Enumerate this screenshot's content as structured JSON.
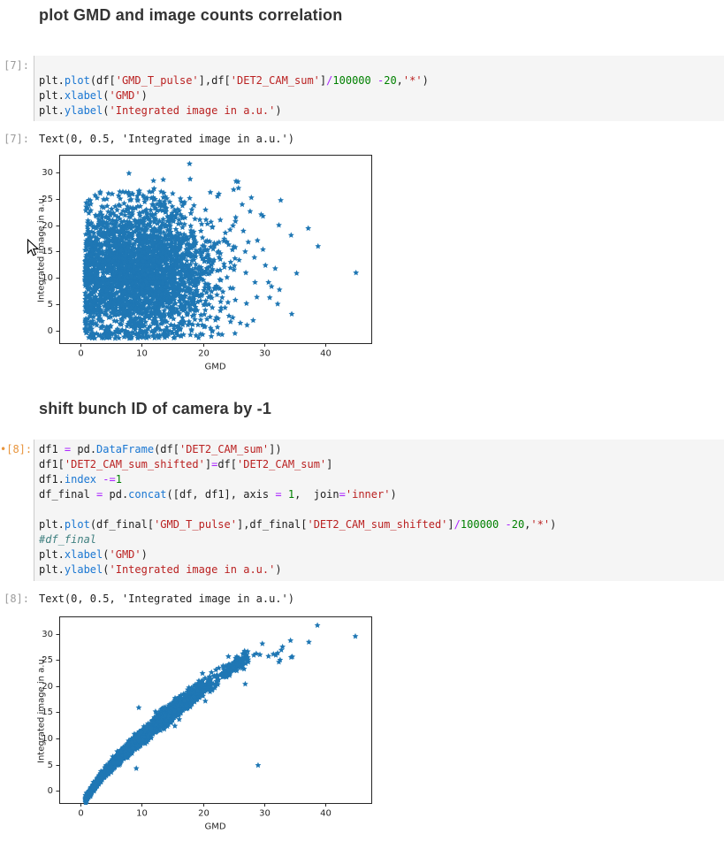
{
  "notebook": {
    "cells": [
      {
        "kind": "markdown",
        "text": "plot GMD and image counts correlation"
      },
      {
        "kind": "code",
        "prompt": "[7]:",
        "lines": [
          [],
          [
            [
              "d",
              "plt."
            ],
            [
              "p",
              "plot"
            ],
            [
              "d",
              "(df["
            ],
            [
              "s",
              "'GMD_T_pulse'"
            ],
            [
              "d",
              "],df["
            ],
            [
              "s",
              "'DET2_CAM_sum'"
            ],
            [
              "d",
              "]"
            ],
            [
              "o",
              "/"
            ],
            [
              "n",
              "100000"
            ],
            [
              "d",
              " "
            ],
            [
              "o",
              "-"
            ],
            [
              "n",
              "20"
            ],
            [
              "d",
              ","
            ],
            [
              "s",
              "'*'"
            ],
            [
              "d",
              ")"
            ]
          ],
          [
            [
              "d",
              "plt."
            ],
            [
              "p",
              "xlabel"
            ],
            [
              "d",
              "("
            ],
            [
              "s",
              "'GMD'"
            ],
            [
              "d",
              ")"
            ]
          ],
          [
            [
              "d",
              "plt."
            ],
            [
              "p",
              "ylabel"
            ],
            [
              "d",
              "("
            ],
            [
              "s",
              "'Integrated image in a.u.'"
            ],
            [
              "d",
              ")"
            ]
          ]
        ]
      },
      {
        "kind": "output",
        "prompt": "[7]:",
        "text": "Text(0, 0.5, 'Integrated image in a.u.')"
      },
      {
        "kind": "figure",
        "chart": 0
      },
      {
        "kind": "markdown",
        "text": "shift bunch ID of camera by -1"
      },
      {
        "kind": "code",
        "prompt": "•[8]:",
        "modified": true,
        "lines": [
          [
            [
              "d",
              "df1 "
            ],
            [
              "o",
              "="
            ],
            [
              "d",
              " pd."
            ],
            [
              "p",
              "DataFrame"
            ],
            [
              "d",
              "(df["
            ],
            [
              "s",
              "'DET2_CAM_sum'"
            ],
            [
              "d",
              "])"
            ]
          ],
          [
            [
              "d",
              "df1["
            ],
            [
              "s",
              "'DET2_CAM_sum_shifted'"
            ],
            [
              "d",
              "]"
            ],
            [
              "o",
              "="
            ],
            [
              "d",
              "df["
            ],
            [
              "s",
              "'DET2_CAM_sum'"
            ],
            [
              "d",
              "]"
            ]
          ],
          [
            [
              "d",
              "df1."
            ],
            [
              "p",
              "index"
            ],
            [
              "d",
              " "
            ],
            [
              "o",
              "-="
            ],
            [
              "n",
              "1"
            ]
          ],
          [
            [
              "d",
              "df_final "
            ],
            [
              "o",
              "="
            ],
            [
              "d",
              " pd."
            ],
            [
              "p",
              "concat"
            ],
            [
              "d",
              "([df, df1], axis "
            ],
            [
              "o",
              "="
            ],
            [
              "d",
              " "
            ],
            [
              "n",
              "1"
            ],
            [
              "d",
              ",  join"
            ],
            [
              "o",
              "="
            ],
            [
              "s",
              "'inner'"
            ],
            [
              "d",
              ")"
            ]
          ],
          [],
          [
            [
              "d",
              "plt."
            ],
            [
              "p",
              "plot"
            ],
            [
              "d",
              "(df_final["
            ],
            [
              "s",
              "'GMD_T_pulse'"
            ],
            [
              "d",
              "],df_final["
            ],
            [
              "s",
              "'DET2_CAM_sum_shifted'"
            ],
            [
              "d",
              "]"
            ],
            [
              "o",
              "/"
            ],
            [
              "n",
              "100000"
            ],
            [
              "d",
              " "
            ],
            [
              "o",
              "-"
            ],
            [
              "n",
              "20"
            ],
            [
              "d",
              ","
            ],
            [
              "s",
              "'*'"
            ],
            [
              "d",
              ")"
            ]
          ],
          [
            [
              "c",
              "#df_final"
            ]
          ],
          [
            [
              "d",
              "plt."
            ],
            [
              "p",
              "xlabel"
            ],
            [
              "d",
              "("
            ],
            [
              "s",
              "'GMD'"
            ],
            [
              "d",
              ")"
            ]
          ],
          [
            [
              "d",
              "plt."
            ],
            [
              "p",
              "ylabel"
            ],
            [
              "d",
              "("
            ],
            [
              "s",
              "'Integrated image in a.u.'"
            ],
            [
              "d",
              ")"
            ]
          ]
        ]
      },
      {
        "kind": "output",
        "prompt": "[8]:",
        "text": "Text(0, 0.5, 'Integrated image in a.u.')"
      },
      {
        "kind": "figure",
        "chart": 1
      }
    ]
  },
  "colors": {
    "marker_blue": "#1f77b4",
    "cell_background": "#f5f5f5",
    "prompt_gray": "#9b9b9b",
    "prompt_orange": "#e8953d",
    "string_token": "#ba2121",
    "number_token": "#008000",
    "operator_token": "#aa22ff",
    "property_token": "#1976d2",
    "comment_token": "#408080"
  },
  "chart_data": [
    {
      "type": "scatter",
      "title": "",
      "xlabel": "GMD",
      "ylabel": "Integrated image in a.u.",
      "marker": "*",
      "color": "#1f77b4",
      "xlim": [
        -3.5,
        47.5
      ],
      "ylim": [
        -2.3,
        33.3
      ],
      "xticks": [
        0,
        10,
        20,
        30,
        40
      ],
      "yticks": [
        0,
        5,
        10,
        15,
        20,
        25,
        30
      ],
      "grid": false,
      "legend": null,
      "description": "Uncorrelated dense cloud: GMD pulse energy vs integrated image counts, ~2600 pts centered near (9.5, 11), x from ~0.7 to ~25.5 with sparse tail to 45, y from ~-1.5 to ~32.",
      "cloud": {
        "n": 3000,
        "seed": 42,
        "x_mean": 9.5,
        "x_sd": 6.0,
        "x_min": 0.7,
        "x_max": 25.5,
        "y_mean": 11.0,
        "y_sd": 6.3,
        "y_min": -1.4,
        "y_max": 26.4
      },
      "extra_points": [
        [
          17.8,
          31.6
        ],
        [
          7.9,
          29.8
        ],
        [
          17.9,
          28.7
        ],
        [
          11.9,
          28.4
        ],
        [
          13.5,
          28.6
        ],
        [
          25.4,
          28.3
        ],
        [
          25.7,
          28.2
        ],
        [
          25.8,
          27.0
        ],
        [
          12.0,
          26.9
        ],
        [
          9.6,
          26.5
        ],
        [
          3.2,
          26.0
        ],
        [
          6.9,
          26.3
        ],
        [
          21.2,
          26.2
        ],
        [
          22.6,
          25.9
        ],
        [
          25.0,
          26.7
        ],
        [
          27.9,
          25.2
        ],
        [
          32.7,
          24.7
        ],
        [
          26.4,
          23.9
        ],
        [
          27.7,
          22.6
        ],
        [
          29.5,
          22.0
        ],
        [
          29.8,
          21.7
        ],
        [
          32.4,
          20.0
        ],
        [
          37.2,
          19.4
        ],
        [
          24.9,
          19.9
        ],
        [
          26.6,
          18.9
        ],
        [
          34.4,
          18.1
        ],
        [
          28.9,
          17.1
        ],
        [
          27.4,
          16.8
        ],
        [
          38.8,
          16.0
        ],
        [
          29.8,
          15.4
        ],
        [
          26.9,
          15.0
        ],
        [
          28.4,
          13.9
        ],
        [
          25.9,
          13.4
        ],
        [
          30.2,
          12.4
        ],
        [
          31.8,
          11.8
        ],
        [
          27.0,
          11.0
        ],
        [
          35.3,
          10.9
        ],
        [
          45.0,
          11.0
        ],
        [
          28.5,
          9.2
        ],
        [
          30.7,
          9.2
        ],
        [
          31.2,
          8.4
        ],
        [
          32.5,
          7.8
        ],
        [
          28.8,
          6.4
        ],
        [
          30.9,
          6.3
        ],
        [
          27.1,
          5.2
        ],
        [
          32.2,
          5.1
        ],
        [
          34.5,
          3.2
        ],
        [
          28.2,
          2.0
        ],
        [
          26.1,
          1.5
        ],
        [
          27.2,
          1.1
        ]
      ]
    },
    {
      "type": "scatter",
      "title": "",
      "xlabel": "GMD",
      "ylabel": "Integrated image in a.u.",
      "marker": "*",
      "color": "#1f77b4",
      "xlim": [
        -3.5,
        47.5
      ],
      "ylim": [
        -2.3,
        33.3
      ],
      "xticks": [
        0,
        10,
        20,
        30,
        40
      ],
      "yticks": [
        0,
        5,
        10,
        15,
        20,
        25,
        30
      ],
      "grid": false,
      "legend": null,
      "description": "After shifting camera bunch ID by -1: tight monotonic correlated band y ≈ 2.72·x^0.72 − 3.9 from (0.9,-1.2) to (27,25.3), dense cluster near (25,24.5), sparse points to (45,29.5), few outliers.",
      "band": {
        "n": 3500,
        "seed": 7,
        "x_mean": 10.0,
        "x_sd": 5.5,
        "x_min": 0.8,
        "x_max": 27.0,
        "curve_a": 2.72,
        "curve_p": 0.72,
        "curve_c": -3.9,
        "noise_base": 0.3,
        "noise_slope": 0.028
      },
      "cluster": {
        "n": 150,
        "seed": 99,
        "x_mean": 25.3,
        "x_sd": 1.0,
        "x_min": 23.0,
        "x_max": 27.5,
        "noise": 0.45
      },
      "extra_points": [
        [
          38.7,
          31.6
        ],
        [
          44.9,
          29.5
        ],
        [
          34.3,
          28.7
        ],
        [
          37.3,
          28.4
        ],
        [
          29.7,
          28.1
        ],
        [
          33.0,
          27.5
        ],
        [
          32.8,
          26.9
        ],
        [
          26.8,
          26.7
        ],
        [
          27.3,
          26.6
        ],
        [
          32.2,
          26.3
        ],
        [
          28.7,
          26.2
        ],
        [
          31.5,
          26.1
        ],
        [
          29.3,
          26.0
        ],
        [
          28.3,
          25.9
        ],
        [
          31.9,
          25.9
        ],
        [
          30.7,
          25.7
        ],
        [
          34.6,
          25.6
        ],
        [
          34.4,
          25.5
        ],
        [
          32.6,
          25.0
        ],
        [
          32.4,
          24.6
        ],
        [
          26.9,
          20.4
        ],
        [
          9.5,
          15.9
        ],
        [
          15.4,
          12.4
        ],
        [
          29.0,
          4.9
        ],
        [
          9.1,
          4.3
        ]
      ]
    }
  ]
}
